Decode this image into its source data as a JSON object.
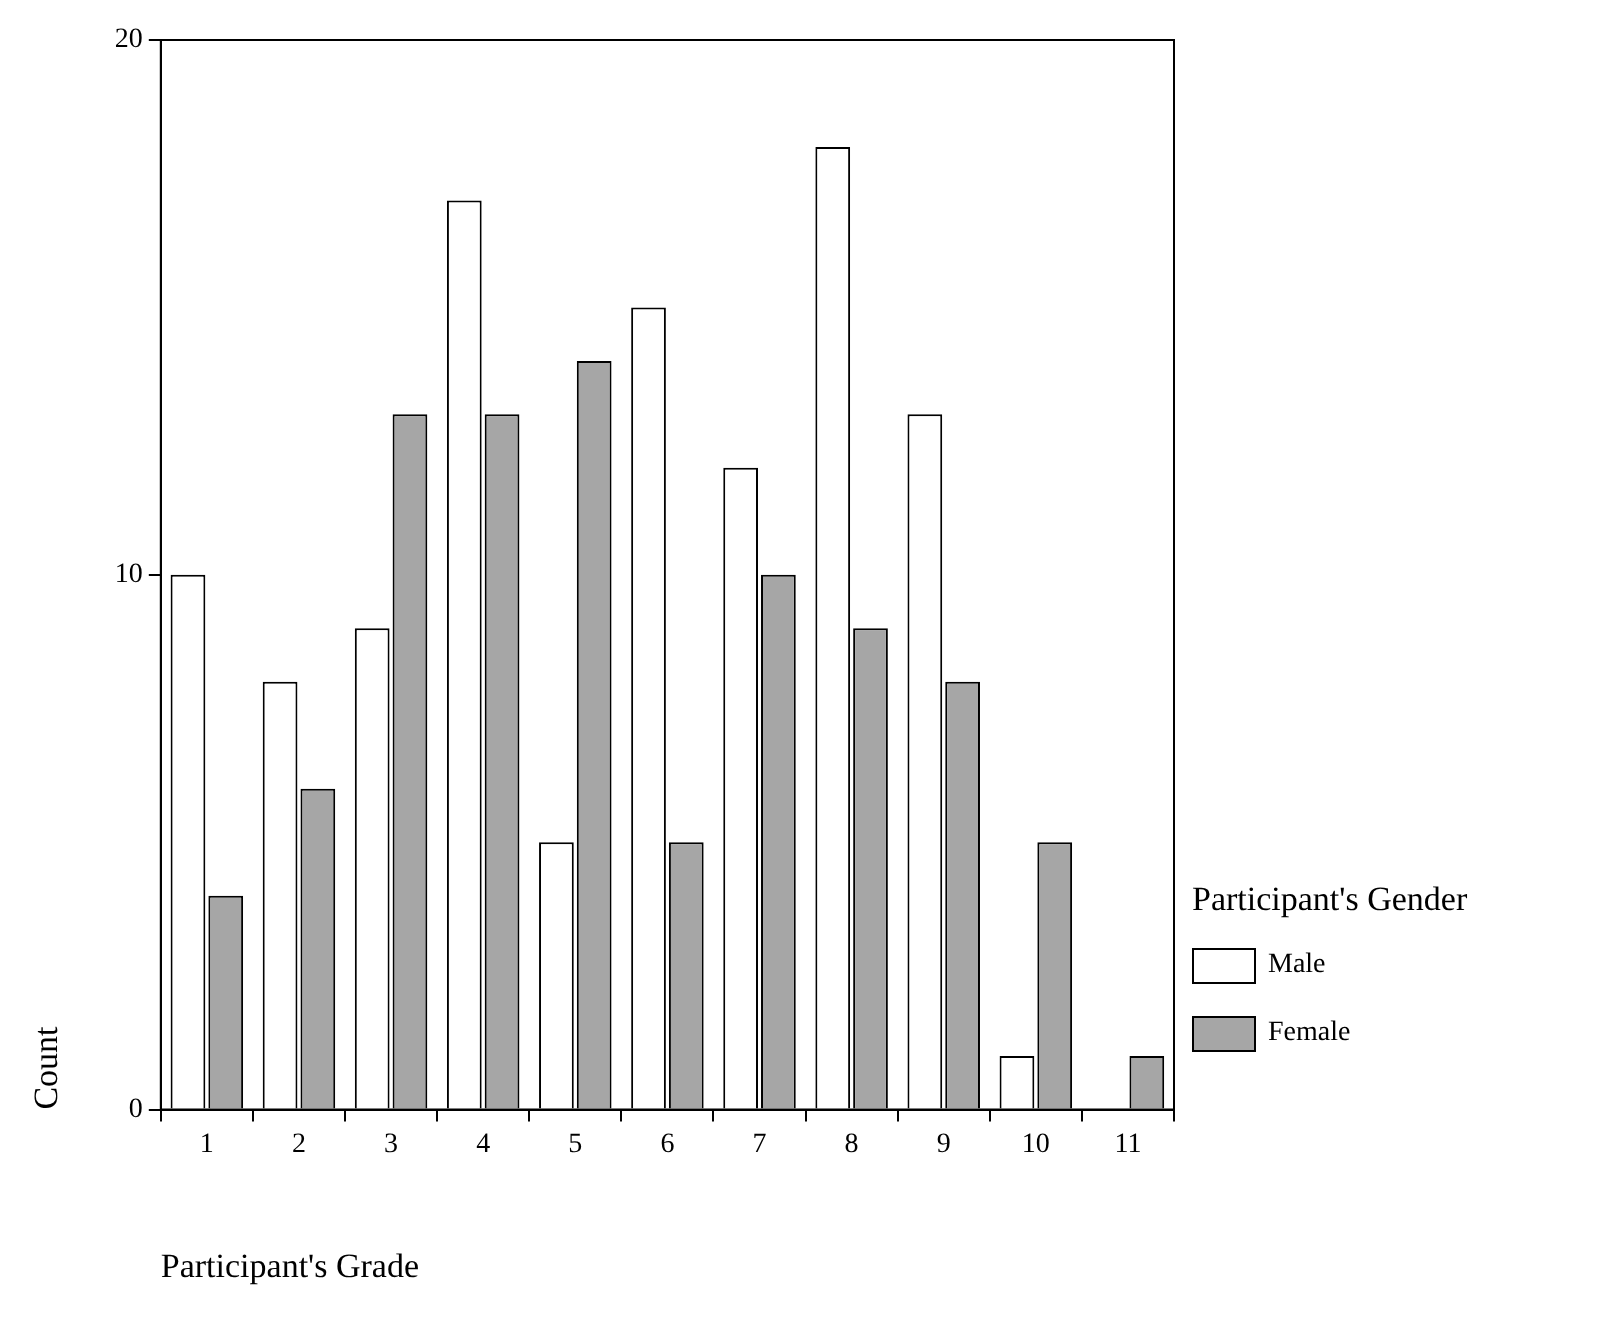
{
  "chart_data": {
    "type": "bar",
    "xlabel": "Participant's Grade",
    "ylabel": "Count",
    "legend_title": "Participant's Gender",
    "categories": [
      "1",
      "2",
      "3",
      "4",
      "5",
      "6",
      "7",
      "8",
      "9",
      "10",
      "11"
    ],
    "series": [
      {
        "name": "Male",
        "color": "#ffffff",
        "values": [
          10,
          8,
          9,
          17,
          5,
          15,
          12,
          18,
          13,
          1,
          null
        ]
      },
      {
        "name": "Female",
        "color": "#a6a6a6",
        "values": [
          4,
          6,
          13,
          13,
          14,
          5,
          10,
          9,
          8,
          5,
          1
        ]
      }
    ],
    "ylim": [
      0,
      20
    ],
    "yticks": [
      0,
      10,
      20
    ],
    "grid": false,
    "legend": "right"
  }
}
